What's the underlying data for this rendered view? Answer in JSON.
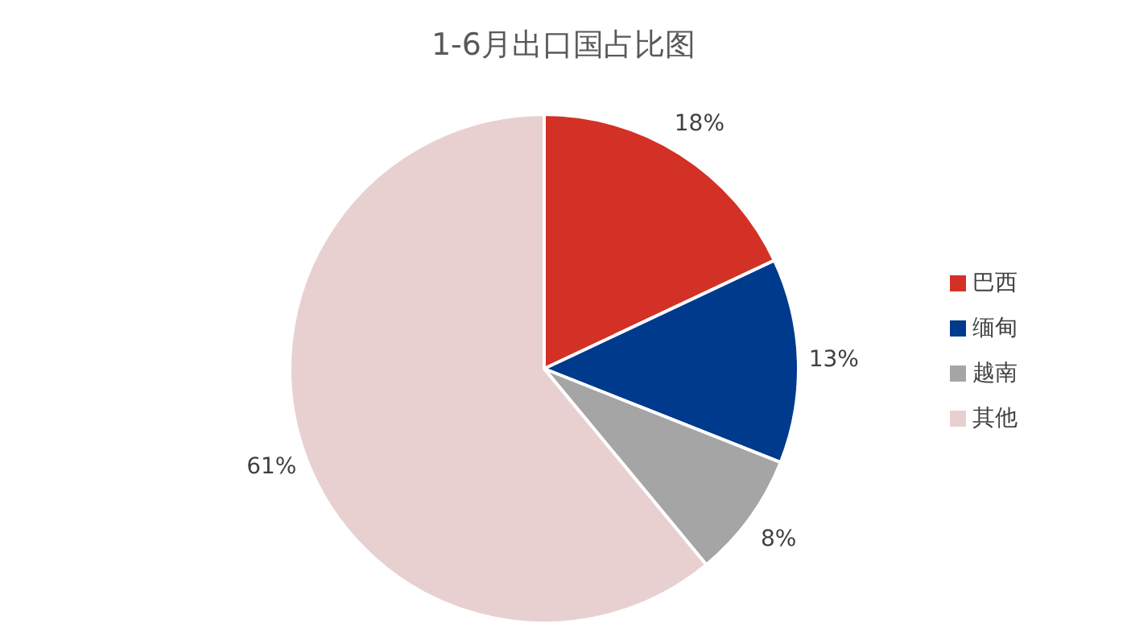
{
  "chart_data": {
    "type": "pie",
    "title": "1-6月出口国占比图",
    "categories": [
      "巴西",
      "缅甸",
      "越南",
      "其他"
    ],
    "values": [
      18,
      13,
      8,
      61
    ],
    "value_labels": [
      "18%",
      "13%",
      "8%",
      "61%"
    ],
    "colors": [
      "#d33126",
      "#003a8c",
      "#a5a5a5",
      "#e8d0d1"
    ],
    "legend": "right"
  }
}
